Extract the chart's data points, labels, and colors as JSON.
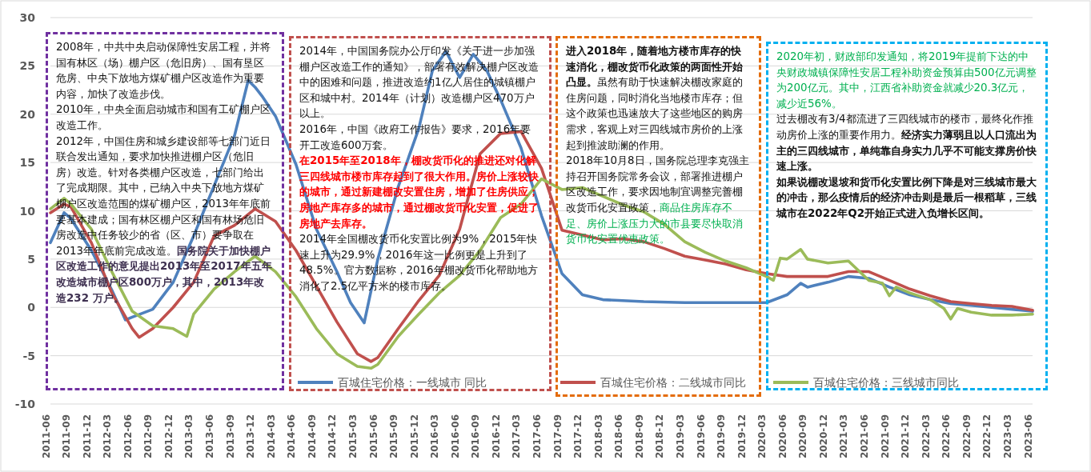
{
  "chart_data": {
    "type": "line",
    "xlim": [
      "2011-06",
      "2023-06"
    ],
    "ylim": [
      -10,
      30
    ],
    "yticks": [
      -10,
      -5,
      0,
      5,
      10,
      15,
      20,
      25,
      30
    ],
    "xticks": [
      "2011-06",
      "2011-09",
      "2011-12",
      "2012-03",
      "2012-06",
      "2012-09",
      "2012-12",
      "2013-03",
      "2013-06",
      "2013-09",
      "2013-12",
      "2014-03",
      "2014-06",
      "2014-09",
      "2014-12",
      "2015-03",
      "2015-06",
      "2015-09",
      "2015-12",
      "2016-03",
      "2016-06",
      "2016-09",
      "2016-12",
      "2017-03",
      "2017-06",
      "2017-09",
      "2017-12",
      "2018-03",
      "2018-06",
      "2018-09",
      "2018-12",
      "2019-03",
      "2019-06",
      "2019-09",
      "2019-12",
      "2020-03",
      "2020-06",
      "2020-09",
      "2020-12",
      "2021-03",
      "2021-06",
      "2021-09",
      "2021-12",
      "2022-03",
      "2022-06",
      "2022-09",
      "2022-12",
      "2023-03",
      "2023-06"
    ],
    "grid": "y",
    "legend": "bottom",
    "marker": "none",
    "line_style": "solid",
    "series": [
      {
        "name": "百城住宅价格：一线城市 同比",
        "color": "#4f81bd",
        "x": [
          "2011-06",
          "2011-08",
          "2011-09",
          "2011-12",
          "2012-03",
          "2012-05",
          "2012-06",
          "2012-09",
          "2012-12",
          "2013-03",
          "2013-06",
          "2013-09",
          "2013-11",
          "2013-12",
          "2014-01",
          "2014-03",
          "2014-06",
          "2014-09",
          "2014-12",
          "2015-02",
          "2015-04",
          "2015-06",
          "2015-09",
          "2015-12",
          "2016-02",
          "2016-04",
          "2016-06",
          "2016-08",
          "2016-10",
          "2016-12",
          "2017-03",
          "2017-06",
          "2017-09",
          "2017-12",
          "2018-03",
          "2018-09",
          "2019-03",
          "2019-09",
          "2020-03",
          "2020-06",
          "2020-08",
          "2020-09",
          "2020-12",
          "2021-03",
          "2021-06",
          "2021-09",
          "2021-12",
          "2022-03",
          "2022-06",
          "2022-09",
          "2022-12",
          "2023-03",
          "2023-06"
        ],
        "values": [
          6.7,
          9.8,
          9.2,
          5.9,
          1.8,
          -1.3,
          -1.0,
          -0.2,
          2.6,
          7.4,
          12.6,
          17.8,
          23.5,
          22.8,
          21.9,
          19.8,
          14.8,
          8.1,
          3.7,
          0.5,
          -1.6,
          5.0,
          12.5,
          18.5,
          24.5,
          26.5,
          23.8,
          26.2,
          24.5,
          21.5,
          16.5,
          9.5,
          3.5,
          1.3,
          0.8,
          0.6,
          0.5,
          0.5,
          0.5,
          1.3,
          2.5,
          2.1,
          2.6,
          3.2,
          3.0,
          2.1,
          1.3,
          0.8,
          0.4,
          0.2,
          0.0,
          -0.2,
          -0.4
        ]
      },
      {
        "name": "百城住宅价格：二线城市同比",
        "color": "#c0504d",
        "x": [
          "2011-06",
          "2011-08",
          "2011-09",
          "2011-12",
          "2012-03",
          "2012-06",
          "2012-07",
          "2012-09",
          "2012-12",
          "2013-03",
          "2013-06",
          "2013-09",
          "2013-12",
          "2014-03",
          "2014-06",
          "2014-09",
          "2014-12",
          "2015-03",
          "2015-05",
          "2015-06",
          "2015-09",
          "2015-12",
          "2016-03",
          "2016-06",
          "2016-09",
          "2016-12",
          "2017-03",
          "2017-06",
          "2017-09",
          "2017-12",
          "2018-03",
          "2018-06",
          "2018-09",
          "2018-12",
          "2019-03",
          "2019-06",
          "2019-09",
          "2019-12",
          "2020-03",
          "2020-06",
          "2020-09",
          "2020-12",
          "2021-03",
          "2021-06",
          "2021-09",
          "2021-12",
          "2022-03",
          "2022-06",
          "2022-09",
          "2022-12",
          "2023-03",
          "2023-06"
        ],
        "values": [
          9.8,
          10.7,
          10.4,
          6.7,
          1.5,
          -2.2,
          -3.1,
          -2.2,
          0.0,
          2.6,
          7.4,
          8.5,
          10.2,
          8.9,
          5.9,
          2.2,
          -1.5,
          -4.8,
          -5.6,
          -5.2,
          -2.2,
          0.7,
          3.3,
          8.1,
          15.9,
          18.0,
          18.2,
          14.4,
          8.0,
          7.5,
          7.0,
          7.1,
          6.8,
          6.1,
          5.3,
          4.9,
          4.5,
          3.9,
          3.5,
          3.2,
          3.2,
          3.2,
          3.7,
          3.7,
          2.8,
          1.9,
          1.2,
          0.6,
          0.4,
          0.2,
          0.1,
          -0.3
        ]
      },
      {
        "name": "百城住宅价格：三线城市同比",
        "color": "#9bbb59",
        "x": [
          "2011-06",
          "2011-08",
          "2011-09",
          "2011-12",
          "2012-03",
          "2012-06",
          "2012-09",
          "2012-12",
          "2013-02",
          "2013-03",
          "2013-06",
          "2013-09",
          "2013-12",
          "2014-03",
          "2014-06",
          "2014-09",
          "2014-12",
          "2015-03",
          "2015-05",
          "2015-06",
          "2015-09",
          "2015-12",
          "2016-03",
          "2016-06",
          "2016-09",
          "2016-12",
          "2017-03",
          "2017-06",
          "2017-09",
          "2017-12",
          "2018-03",
          "2018-06",
          "2018-09",
          "2018-12",
          "2019-03",
          "2019-06",
          "2019-09",
          "2019-12",
          "2020-03",
          "2020-04",
          "2020-05",
          "2020-06",
          "2020-08",
          "2020-09",
          "2020-12",
          "2021-03",
          "2021-06",
          "2021-08",
          "2021-09",
          "2021-10",
          "2021-12",
          "2022-03",
          "2022-05",
          "2022-06",
          "2022-07",
          "2022-09",
          "2022-12",
          "2023-03",
          "2023-06"
        ],
        "values": [
          10.2,
          11.3,
          10.7,
          8.1,
          3.7,
          -0.4,
          -1.9,
          -2.2,
          -3.0,
          -0.7,
          1.9,
          3.7,
          5.3,
          3.7,
          1.1,
          -2.2,
          -4.8,
          -6.1,
          -6.3,
          -5.9,
          -3.0,
          -0.7,
          1.5,
          3.3,
          5.9,
          9.3,
          10.7,
          13.3,
          12.2,
          12.4,
          11.5,
          10.6,
          9.9,
          8.6,
          6.8,
          5.7,
          4.8,
          4.1,
          3.2,
          2.8,
          5.1,
          5.0,
          6.0,
          5.0,
          4.6,
          4.8,
          2.8,
          2.5,
          1.2,
          2.1,
          1.5,
          0.8,
          -0.1,
          -1.2,
          -0.1,
          -0.5,
          -0.8,
          -0.8,
          -0.7
        ]
      }
    ],
    "annotations": [
      "2008年，中共中央启动保障性安居工程，并将国有林区（场）棚户区（危旧房）、国有垦区危房、中央下放地方煤矿棚户区改造作为重要内容，加快了改造步伐。",
      "2010年，中央全面启动城市和国有工矿棚户区改造工作。",
      "2012年，中国住房和城乡建设部等七部门近日联合发出通知，要求加快推进棚户区（危旧房）改造。针对各类棚户区改造，七部门给出了完成期限。其中，已纳入中央下放地方煤矿棚户区改造范围的煤矿棚户区，2013年年底前要基本建成；国有林区棚户区和国有林场危旧房改造中任务较少的省（区、市）要争取在2013年年底前完成改造。**国务院关于加快棚户区改造工作的意见提出2013年至2017年五年改造城市棚户区800万户，其中，2013年改造232 万户。**",
      "2014年，中国国务院办公厅印发《关于进一步加强棚户区改造工作的通知》，部署有效解决棚户区改造中的困难和问题，推进改造约1亿人居住的城镇棚户区和城中村。2014年（计划）改造棚户区470万户以上。",
      "2016年，中国《政府工作报告》要求，2016年要开工改造600万套。",
      "在2015年至2018年，棚改货币化的推进还对化解三四线城市楼市库存起到了很大作用。房价上涨较快的城市，通过新建棚改安置住房，增加了住房供应；房地产库存多的城市，通过棚改货币化安置，促进了房地产去库存。",
      "2014年全国棚改货币化安置比例为9%，2015年快速上升为29.9%，2016年这一比例更是上升到了48.5%。官方数据称，2016年棚改货币化帮助地方消化了2.5亿平方米的楼市库存。",
      "**进入2018年，随着地方楼市库存的快速消化，棚改货币化政策的两面性开始凸显。**虽然有助于快速解决棚改家庭的住房问题，同时消化当地楼市库存；但这个政策也迅速放大了这些地区的购房需求，客观上对三四线城市房价的上涨起到推波助澜的作用。",
      "2018年10月8日，国务院总理李克强主持召开国务院常务会议，部署推进棚户区改造工作，要求因地制宜调整完善棚改货币化安置政策，",
      "商品住房库存不足、房价上涨压力大的市县要尽快取消货币化安置优惠政策。",
      "2020年初，财政部印发通知，将2019年提前下达的中央财政城镇保障性安居工程补助资金预算由500亿元调整为200亿元。其中，江西省补助资金就减少20.3亿元，减少近56%。",
      "过去棚改有3/4都流进了三四线城市的楼市，最终化作推动房价上涨的重要作用力。**经济实力薄弱且以人口流出为主的三四线城市，单纯靠自身实力几乎不可能支撑房价快速上涨。**",
      "如果说棚改退坡和货币化安置比例下降是对三线城市最大的冲击，那么疫情后的经济冲击则是最后一根稻草，三线城市在2022年Q2开始正式进入负增长区间。"
    ]
  }
}
